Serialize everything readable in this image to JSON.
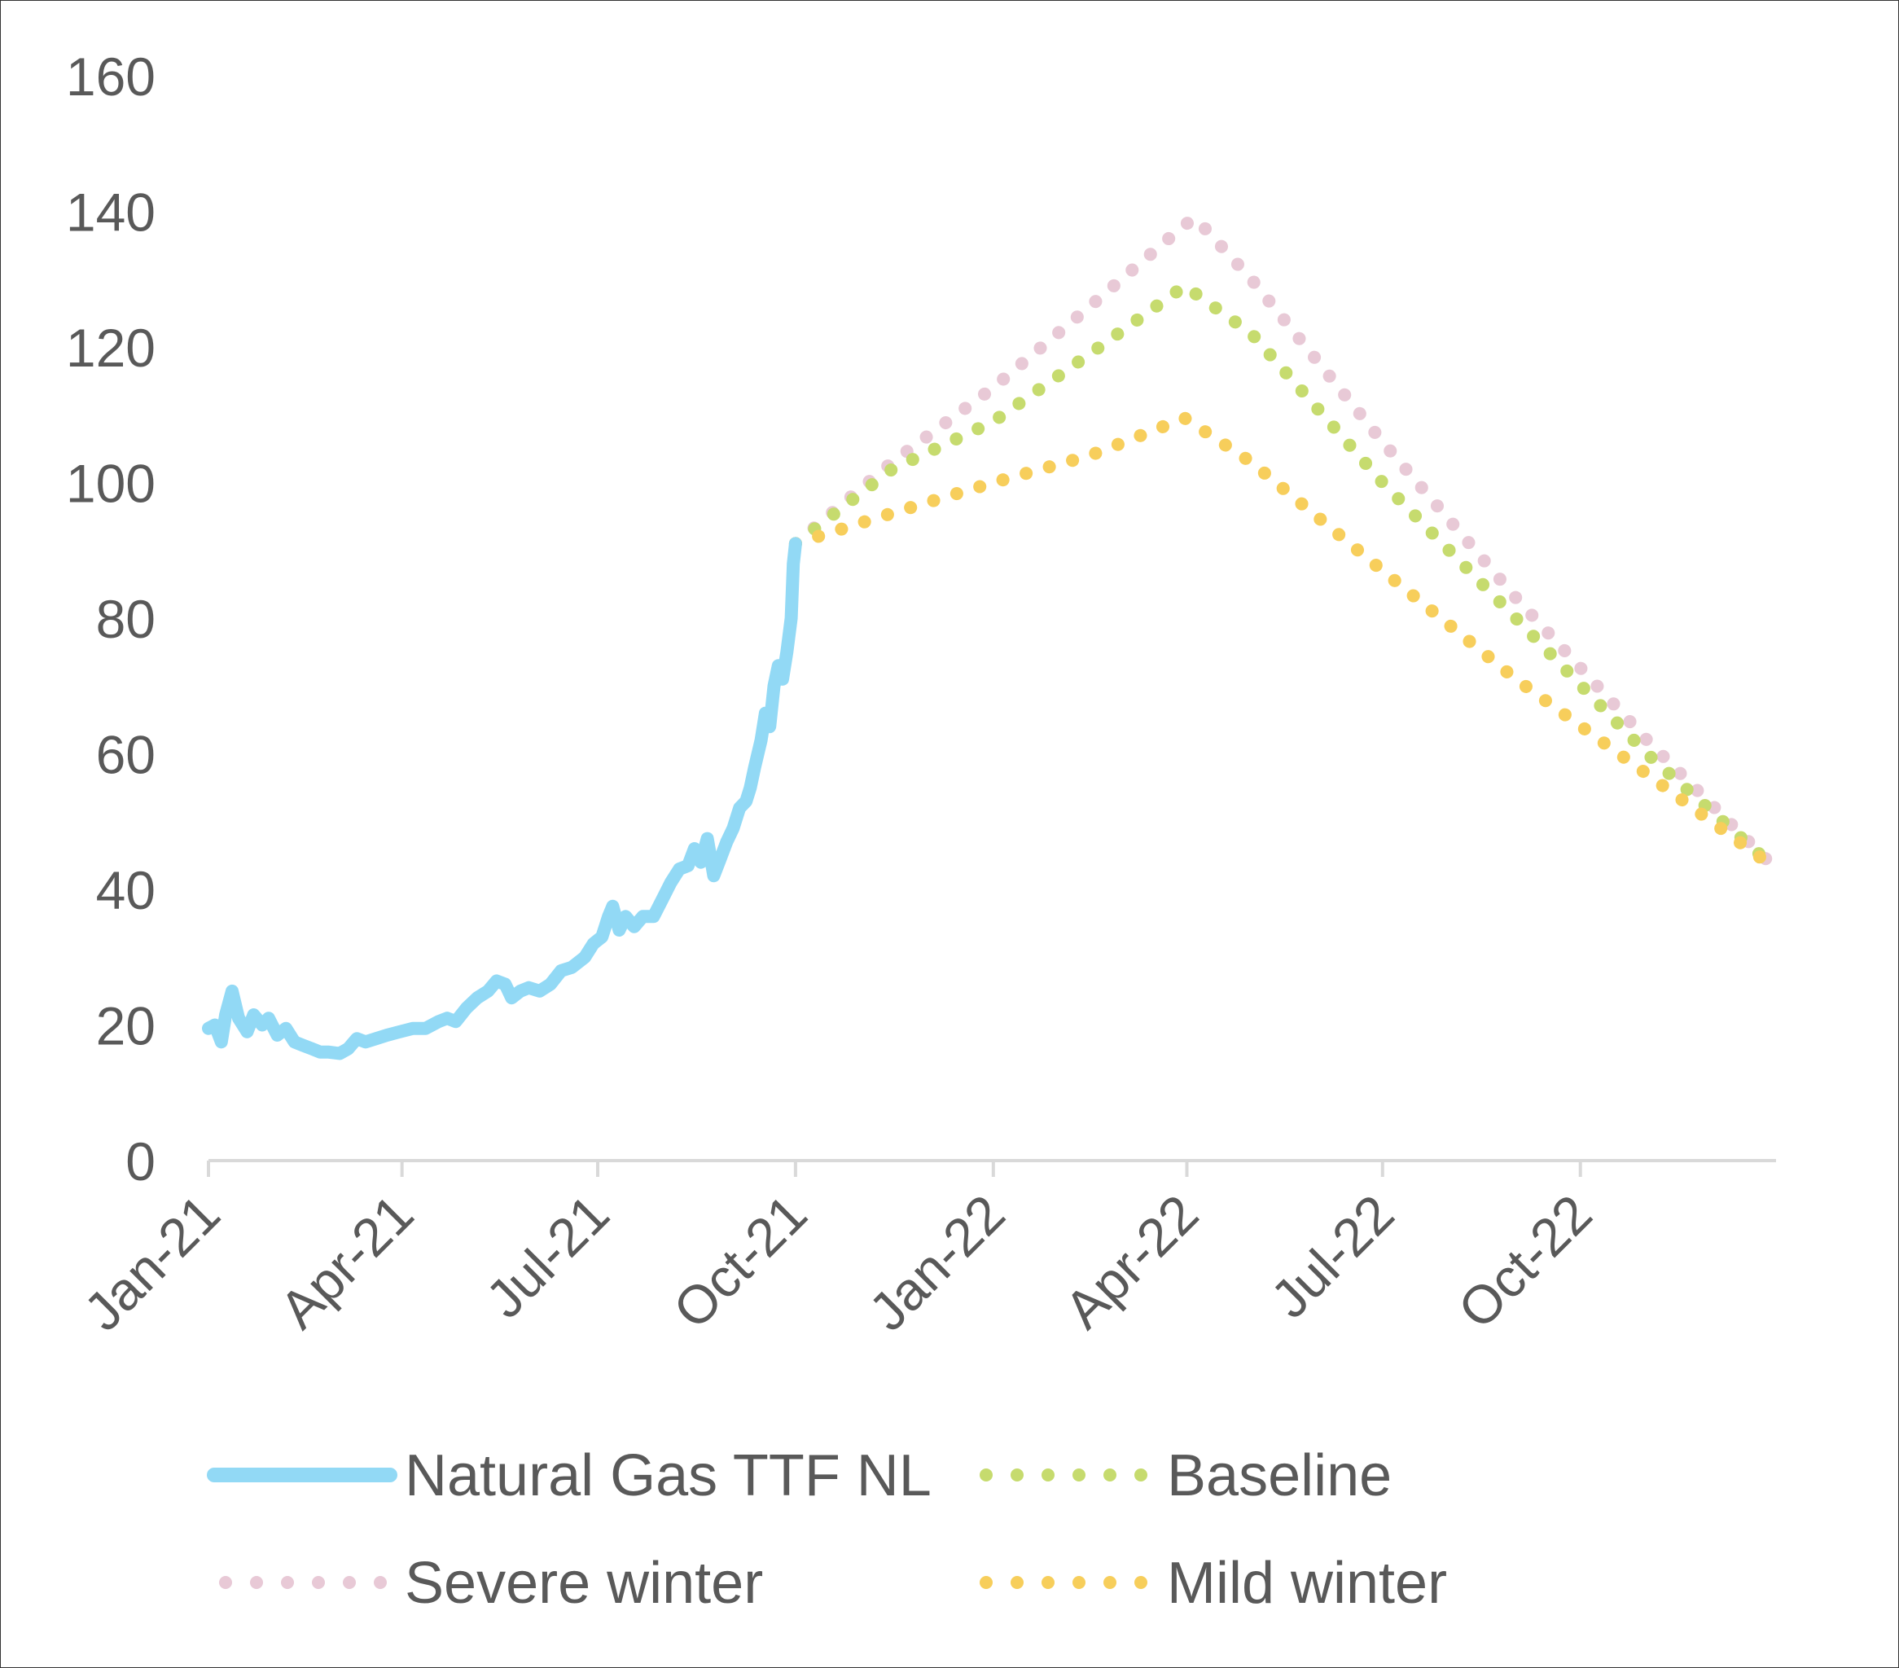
{
  "chart_data": {
    "type": "line",
    "title": "",
    "xlabel": "",
    "ylabel": "",
    "ylim": [
      0,
      160
    ],
    "yticks": [
      0,
      20,
      40,
      60,
      80,
      100,
      120,
      140,
      160
    ],
    "xlim": [
      "2021-01-01",
      "2022-12-31"
    ],
    "xticks": [
      {
        "date": "2021-01-01",
        "label": "Jan-21"
      },
      {
        "date": "2021-04-01",
        "label": "Apr-21"
      },
      {
        "date": "2021-07-01",
        "label": "Jul-21"
      },
      {
        "date": "2021-10-01",
        "label": "Oct-21"
      },
      {
        "date": "2022-01-01",
        "label": "Jan-22"
      },
      {
        "date": "2022-04-01",
        "label": "Apr-22"
      },
      {
        "date": "2022-07-01",
        "label": "Jul-22"
      },
      {
        "date": "2022-10-01",
        "label": "Oct-22"
      }
    ],
    "grid": false,
    "legend_position": "bottom",
    "series": [
      {
        "name": "Natural Gas TTF NL",
        "style": "solid",
        "color": "#92d9f5",
        "points": [
          [
            "2021-01-01",
            19.5
          ],
          [
            "2021-01-04",
            20.0
          ],
          [
            "2021-01-07",
            17.5
          ],
          [
            "2021-01-09",
            21.5
          ],
          [
            "2021-01-12",
            25.0
          ],
          [
            "2021-01-15",
            21.0
          ],
          [
            "2021-01-19",
            19.0
          ],
          [
            "2021-01-22",
            21.5
          ],
          [
            "2021-01-26",
            20.0
          ],
          [
            "2021-01-29",
            21.0
          ],
          [
            "2021-02-02",
            18.5
          ],
          [
            "2021-02-06",
            19.5
          ],
          [
            "2021-02-10",
            17.5
          ],
          [
            "2021-02-14",
            17.0
          ],
          [
            "2021-02-18",
            16.5
          ],
          [
            "2021-02-22",
            16.0
          ],
          [
            "2021-02-26",
            16.0
          ],
          [
            "2021-03-03",
            15.8
          ],
          [
            "2021-03-07",
            16.5
          ],
          [
            "2021-03-11",
            18.0
          ],
          [
            "2021-03-15",
            17.5
          ],
          [
            "2021-03-20",
            18.0
          ],
          [
            "2021-03-25",
            18.5
          ],
          [
            "2021-03-31",
            19.0
          ],
          [
            "2021-04-06",
            19.5
          ],
          [
            "2021-04-12",
            19.5
          ],
          [
            "2021-04-18",
            20.5
          ],
          [
            "2021-04-22",
            21.0
          ],
          [
            "2021-04-26",
            20.5
          ],
          [
            "2021-05-01",
            22.5
          ],
          [
            "2021-05-06",
            24.0
          ],
          [
            "2021-05-11",
            25.0
          ],
          [
            "2021-05-15",
            26.5
          ],
          [
            "2021-05-19",
            26.0
          ],
          [
            "2021-05-22",
            24.0
          ],
          [
            "2021-05-26",
            25.0
          ],
          [
            "2021-05-30",
            25.5
          ],
          [
            "2021-06-04",
            25.0
          ],
          [
            "2021-06-09",
            26.0
          ],
          [
            "2021-06-14",
            28.0
          ],
          [
            "2021-06-19",
            28.5
          ],
          [
            "2021-06-25",
            30.0
          ],
          [
            "2021-06-29",
            32.0
          ],
          [
            "2021-07-03",
            33.0
          ],
          [
            "2021-07-06",
            36.0
          ],
          [
            "2021-07-08",
            37.5
          ],
          [
            "2021-07-11",
            34.0
          ],
          [
            "2021-07-14",
            36.0
          ],
          [
            "2021-07-18",
            34.5
          ],
          [
            "2021-07-22",
            36.0
          ],
          [
            "2021-07-27",
            36.0
          ],
          [
            "2021-07-31",
            38.5
          ],
          [
            "2021-08-04",
            41.0
          ],
          [
            "2021-08-08",
            43.0
          ],
          [
            "2021-08-12",
            43.5
          ],
          [
            "2021-08-15",
            46.0
          ],
          [
            "2021-08-18",
            44.0
          ],
          [
            "2021-08-21",
            47.5
          ],
          [
            "2021-08-24",
            42.0
          ],
          [
            "2021-08-27",
            44.5
          ],
          [
            "2021-08-30",
            47.0
          ],
          [
            "2021-09-02",
            49.0
          ],
          [
            "2021-09-05",
            52.0
          ],
          [
            "2021-09-08",
            53.0
          ],
          [
            "2021-09-10",
            55.0
          ],
          [
            "2021-09-12",
            58.0
          ],
          [
            "2021-09-15",
            62.0
          ],
          [
            "2021-09-17",
            66.0
          ],
          [
            "2021-09-19",
            64.0
          ],
          [
            "2021-09-21",
            70.0
          ],
          [
            "2021-09-23",
            73.0
          ],
          [
            "2021-09-25",
            71.0
          ],
          [
            "2021-09-27",
            75.0
          ],
          [
            "2021-09-29",
            80.0
          ],
          [
            "2021-09-30",
            88.0
          ],
          [
            "2021-10-01",
            91.0
          ]
        ]
      },
      {
        "name": "Baseline",
        "style": "dotted",
        "color": "#c6db6e",
        "points": [
          [
            "2021-10-01",
            91
          ],
          [
            "2021-11-15",
            102
          ],
          [
            "2022-01-01",
            109
          ],
          [
            "2022-02-15",
            119
          ],
          [
            "2022-03-31",
            129
          ],
          [
            "2022-05-01",
            122
          ],
          [
            "2022-07-01",
            100
          ],
          [
            "2022-09-01",
            80
          ],
          [
            "2022-11-01",
            60
          ],
          [
            "2022-12-31",
            43
          ]
        ]
      },
      {
        "name": "Severe winter",
        "style": "dotted",
        "color": "#e8c9d6",
        "points": [
          [
            "2021-10-01",
            91
          ],
          [
            "2021-11-15",
            103
          ],
          [
            "2022-01-01",
            114
          ],
          [
            "2022-02-15",
            126
          ],
          [
            "2022-03-31",
            138
          ],
          [
            "2022-04-05",
            139
          ],
          [
            "2022-05-01",
            130
          ],
          [
            "2022-07-01",
            106
          ],
          [
            "2022-09-01",
            83
          ],
          [
            "2022-11-01",
            62
          ],
          [
            "2022-12-31",
            43
          ]
        ]
      },
      {
        "name": "Mild winter",
        "style": "dotted",
        "color": "#f7ce5b",
        "points": [
          [
            "2021-10-01",
            91
          ],
          [
            "2021-11-15",
            95.5
          ],
          [
            "2022-01-01",
            100
          ],
          [
            "2022-02-15",
            104
          ],
          [
            "2022-03-31",
            109.5
          ],
          [
            "2022-05-01",
            103
          ],
          [
            "2022-07-01",
            87
          ],
          [
            "2022-09-01",
            71
          ],
          [
            "2022-11-01",
            57
          ],
          [
            "2022-12-31",
            43
          ]
        ]
      }
    ]
  },
  "legend": [
    {
      "label": "Natural Gas TTF NL",
      "color": "#92d9f5",
      "style": "solid"
    },
    {
      "label": "Baseline",
      "color": "#c6db6e",
      "style": "dotted"
    },
    {
      "label": "Severe winter",
      "color": "#e8c9d6",
      "style": "dotted"
    },
    {
      "label": "Mild winter",
      "color": "#f7ce5b",
      "style": "dotted"
    }
  ]
}
